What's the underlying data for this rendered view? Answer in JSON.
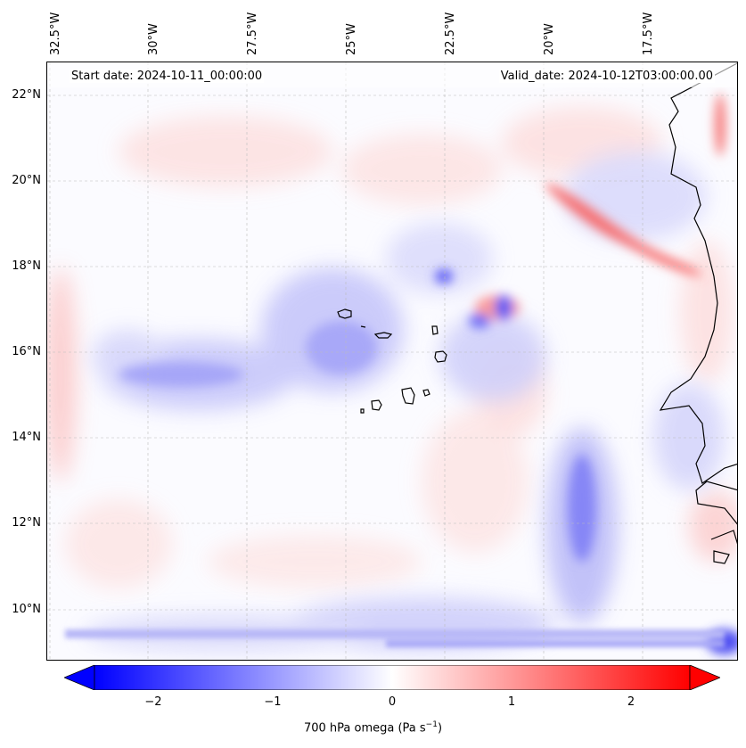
{
  "annotations": {
    "start_date": "Start date: 2024-10-11_00:00:00",
    "valid_date": "Valid_date: 2024-10-12T03:00:00.00"
  },
  "longitude_labels": [
    "32.5°W",
    "30°W",
    "27.5°W",
    "25°W",
    "22.5°W",
    "20°W",
    "17.5°W"
  ],
  "latitude_labels": [
    "22°N",
    "20°N",
    "18°N",
    "16°N",
    "14°N",
    "12°N",
    "10°N"
  ],
  "colorbar": {
    "label_prefix": "700 hPa omega (Pa s",
    "label_exp": "−1",
    "label_suffix": ")",
    "ticks": [
      "−2",
      "−1",
      "0",
      "1",
      "2"
    ],
    "range": [
      -2.5,
      2.5
    ],
    "cmap": "bwr",
    "extend": "both",
    "colors": {
      "min": "#0000ff",
      "mid": "#ffffff",
      "max": "#ff0000"
    }
  },
  "map": {
    "projection": "PlateCarree",
    "gridlines": true,
    "coastline_color": "#000000",
    "region": {
      "lon": [
        -33,
        -15
      ],
      "lat": [
        8.8,
        22.8
      ]
    }
  }
}
